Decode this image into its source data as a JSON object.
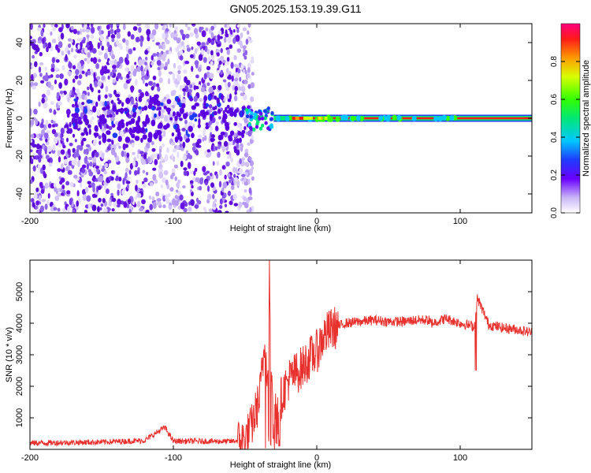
{
  "title": "GN05.2025.153.19.39.G11",
  "colors": {
    "snr_line": "#e8302d",
    "spectrum_low": "#8a2be2",
    "spectrum_line": "#ff1a1a"
  },
  "chart_data": [
    {
      "type": "heatmap",
      "xlabel": "Height of straight line (km)",
      "ylabel": "Frequency (Hz)",
      "xlim": [
        -200,
        150
      ],
      "ylim": [
        -50,
        50
      ],
      "x_ticks": [
        -200,
        -100,
        0,
        100
      ],
      "x_tick_labels": [
        "-200",
        "-100",
        "0",
        "100"
      ],
      "y_ticks": [
        -40,
        -20,
        0,
        20,
        40
      ],
      "y_tick_labels": [
        "-40",
        "-20",
        "0",
        "20",
        "40"
      ],
      "colorbar": {
        "label": "Normalized spectral amplitude",
        "range": [
          0.0,
          1.0
        ],
        "ticks": [
          0.0,
          0.2,
          0.4,
          0.6,
          0.8
        ],
        "tick_labels": [
          "0.0",
          "0.2",
          "0.4",
          "0.6",
          "0.8"
        ]
      },
      "description_points": {
        "noise_region_x": [
          -200,
          -50
        ],
        "signal_line_start_x": -50,
        "signal_line_frequency": 0
      }
    },
    {
      "type": "line",
      "xlabel": "Height of straight line (km)",
      "ylabel": "SNR (10 * v/v)",
      "xlim": [
        -200,
        150
      ],
      "ylim": [
        0,
        6000
      ],
      "x_ticks": [
        -200,
        -100,
        0,
        100
      ],
      "x_tick_labels": [
        "-200",
        "-100",
        "0",
        "100"
      ],
      "y_ticks": [
        1000,
        2000,
        3000,
        4000,
        5000
      ],
      "y_tick_labels": [
        "1000",
        "2000",
        "3000",
        "4000",
        "5000"
      ],
      "series": [
        {
          "x": [
            -200,
            -150,
            -120,
            -106,
            -100,
            -60,
            -50,
            -45,
            -40,
            -36,
            -34,
            -33,
            -32,
            -30,
            -25,
            -20,
            -15,
            -10,
            -5,
            0,
            5,
            10,
            15,
            20,
            30,
            40,
            50,
            60,
            70,
            78,
            80,
            90,
            100,
            105,
            110,
            112,
            120,
            130,
            140,
            150
          ],
          "y": [
            200,
            230,
            280,
            700,
            260,
            250,
            300,
            800,
            1600,
            3500,
            2000,
            6000,
            3000,
            1200,
            1600,
            2200,
            2400,
            2600,
            2900,
            3100,
            3600,
            3800,
            3900,
            4000,
            4050,
            4100,
            4050,
            4050,
            4100,
            4100,
            4000,
            4150,
            4000,
            3950,
            3900,
            4800,
            3950,
            3850,
            3800,
            3700
          ]
        }
      ]
    }
  ]
}
